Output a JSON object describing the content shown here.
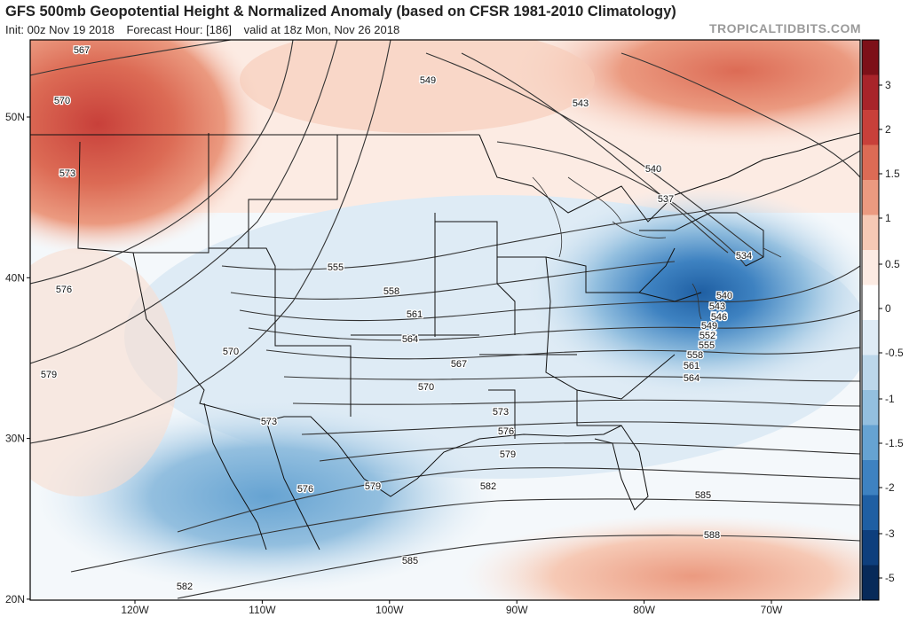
{
  "header": {
    "title": "GFS 500mb Geopotential Height & Normalized Anomaly (based on CFSR 1981-2010 Climatology)",
    "init": "Init: 00z Nov 19 2018",
    "forecast_hour": "Forecast Hour: [186]",
    "valid": "valid at 18z Mon, Nov 26 2018",
    "brand": "TROPICALTIDBITS.COM"
  },
  "axes": {
    "lat_labels": [
      {
        "text": "50N",
        "lat": 50
      },
      {
        "text": "40N",
        "lat": 40
      },
      {
        "text": "30N",
        "lat": 30
      },
      {
        "text": "20N",
        "lat": 20
      }
    ],
    "lon_labels": [
      {
        "text": "120W",
        "lon": -120
      },
      {
        "text": "110W",
        "lon": -110
      },
      {
        "text": "100W",
        "lon": -100
      },
      {
        "text": "90W",
        "lon": -90
      },
      {
        "text": "80W",
        "lon": -80
      },
      {
        "text": "70W",
        "lon": -70
      }
    ]
  },
  "colorbar": {
    "labels": [
      "3",
      "2",
      "1.5",
      "1",
      "0.5",
      "0",
      "-0.5",
      "-1",
      "-1.5",
      "-2",
      "-3",
      "-5"
    ],
    "colors": [
      "#7d1018",
      "#a8242a",
      "#c8403a",
      "#dc6b55",
      "#eb9a80",
      "#f6c9b5",
      "#fcebe3",
      "#ffffff",
      "#deebf5",
      "#bcd7ea",
      "#93bfdf",
      "#66a3d2",
      "#3e82c1",
      "#1f5fa3",
      "#0e3f7d",
      "#072a59"
    ]
  },
  "contour_labels": [
    "567",
    "570",
    "573",
    "576",
    "579",
    "549",
    "543",
    "540",
    "537",
    "534",
    "555",
    "558",
    "561",
    "564",
    "567",
    "570",
    "573",
    "576",
    "579",
    "582",
    "585",
    "588",
    "546",
    "552",
    "570",
    "573",
    "576",
    "579",
    "582",
    "585",
    "540",
    "543",
    "546",
    "549",
    "552",
    "555",
    "558",
    "561",
    "564"
  ]
}
